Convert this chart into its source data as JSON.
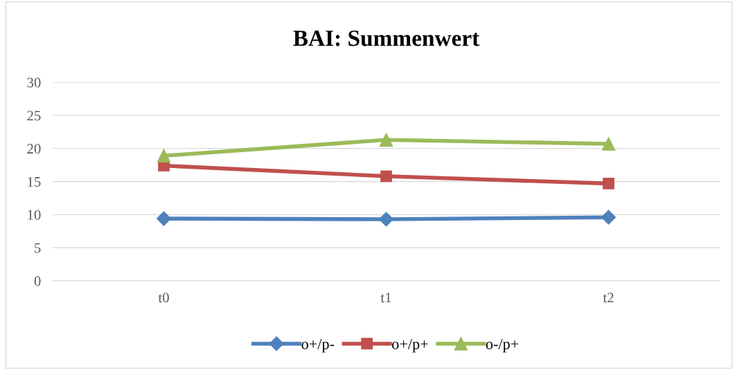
{
  "chart_data": {
    "type": "line",
    "title": "BAI: Summenwert",
    "categories": [
      "t0",
      "t1",
      "t2"
    ],
    "series": [
      {
        "name": "o+/p-",
        "color": "#4f81bd",
        "marker": "diamond",
        "values": [
          9.4,
          9.3,
          9.6
        ]
      },
      {
        "name": "o+/p+",
        "color": "#c0504d",
        "marker": "square",
        "values": [
          17.4,
          15.8,
          14.7
        ]
      },
      {
        "name": "o-/p+",
        "color": "#9bbb59",
        "marker": "triangle",
        "values": [
          18.9,
          21.3,
          20.7
        ]
      }
    ],
    "ylim": [
      0,
      30
    ],
    "yticks": [
      0,
      5,
      10,
      15,
      20,
      25,
      30
    ],
    "grid": "y",
    "legend": "bottom",
    "line_style": "solid"
  }
}
